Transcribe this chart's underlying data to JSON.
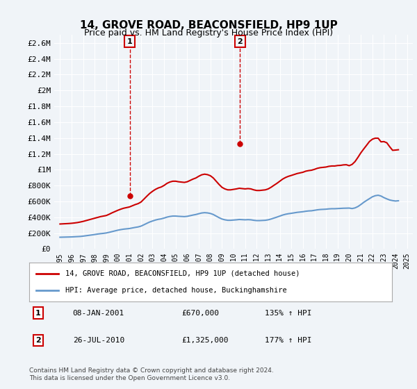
{
  "title": "14, GROVE ROAD, BEACONSFIELD, HP9 1UP",
  "subtitle": "Price paid vs. HM Land Registry's House Price Index (HPI)",
  "hpi_line_color": "#6699cc",
  "price_line_color": "#cc0000",
  "background_color": "#f0f4f8",
  "plot_bg_color": "#f0f4f8",
  "grid_color": "#ffffff",
  "ylim": [
    0,
    2700000
  ],
  "yticks": [
    0,
    200000,
    400000,
    600000,
    800000,
    1000000,
    1200000,
    1400000,
    1600000,
    1800000,
    2000000,
    2200000,
    2400000,
    2600000
  ],
  "ytick_labels": [
    "£0",
    "£200K",
    "£400K",
    "£600K",
    "£800K",
    "£1M",
    "£1.2M",
    "£1.4M",
    "£1.6M",
    "£1.8M",
    "£2M",
    "£2.2M",
    "£2.4M",
    "£2.6M"
  ],
  "xlabel": "",
  "legend_label_red": "14, GROVE ROAD, BEACONSFIELD, HP9 1UP (detached house)",
  "legend_label_blue": "HPI: Average price, detached house, Buckinghamshire",
  "sale1_label": "1",
  "sale1_date": "08-JAN-2001",
  "sale1_price": "£670,000",
  "sale1_hpi": "135% ↑ HPI",
  "sale1_year": 2001.03,
  "sale1_value": 670000,
  "sale2_label": "2",
  "sale2_date": "26-JUL-2010",
  "sale2_price": "£1,325,000",
  "sale2_hpi": "177% ↑ HPI",
  "sale2_year": 2010.56,
  "sale2_value": 1325000,
  "footnote": "Contains HM Land Registry data © Crown copyright and database right 2024.\nThis data is licensed under the Open Government Licence v3.0.",
  "hpi_data": {
    "years": [
      1995.0,
      1995.25,
      1995.5,
      1995.75,
      1996.0,
      1996.25,
      1996.5,
      1996.75,
      1997.0,
      1997.25,
      1997.5,
      1997.75,
      1998.0,
      1998.25,
      1998.5,
      1998.75,
      1999.0,
      1999.25,
      1999.5,
      1999.75,
      2000.0,
      2000.25,
      2000.5,
      2000.75,
      2001.0,
      2001.25,
      2001.5,
      2001.75,
      2002.0,
      2002.25,
      2002.5,
      2002.75,
      2003.0,
      2003.25,
      2003.5,
      2003.75,
      2004.0,
      2004.25,
      2004.5,
      2004.75,
      2005.0,
      2005.25,
      2005.5,
      2005.75,
      2006.0,
      2006.25,
      2006.5,
      2006.75,
      2007.0,
      2007.25,
      2007.5,
      2007.75,
      2008.0,
      2008.25,
      2008.5,
      2008.75,
      2009.0,
      2009.25,
      2009.5,
      2009.75,
      2010.0,
      2010.25,
      2010.5,
      2010.75,
      2011.0,
      2011.25,
      2011.5,
      2011.75,
      2012.0,
      2012.25,
      2012.5,
      2012.75,
      2013.0,
      2013.25,
      2013.5,
      2013.75,
      2014.0,
      2014.25,
      2014.5,
      2014.75,
      2015.0,
      2015.25,
      2015.5,
      2015.75,
      2016.0,
      2016.25,
      2016.5,
      2016.75,
      2017.0,
      2017.25,
      2017.5,
      2017.75,
      2018.0,
      2018.25,
      2018.5,
      2018.75,
      2019.0,
      2019.25,
      2019.5,
      2019.75,
      2020.0,
      2020.25,
      2020.5,
      2020.75,
      2021.0,
      2021.25,
      2021.5,
      2021.75,
      2022.0,
      2022.25,
      2022.5,
      2022.75,
      2023.0,
      2023.25,
      2023.5,
      2023.75,
      2024.0,
      2024.25
    ],
    "values": [
      148000,
      149000,
      150000,
      151000,
      152000,
      154000,
      156000,
      158000,
      162000,
      167000,
      172000,
      177000,
      182000,
      188000,
      193000,
      197000,
      202000,
      210000,
      219000,
      228000,
      237000,
      244000,
      250000,
      254000,
      258000,
      265000,
      272000,
      278000,
      288000,
      305000,
      323000,
      340000,
      353000,
      365000,
      374000,
      380000,
      390000,
      402000,
      410000,
      415000,
      415000,
      412000,
      410000,
      408000,
      412000,
      420000,
      428000,
      435000,
      445000,
      454000,
      458000,
      455000,
      448000,
      435000,
      415000,
      395000,
      378000,
      368000,
      362000,
      362000,
      365000,
      368000,
      372000,
      370000,
      368000,
      370000,
      368000,
      362000,
      358000,
      358000,
      360000,
      362000,
      368000,
      378000,
      390000,
      402000,
      415000,
      428000,
      438000,
      445000,
      450000,
      456000,
      462000,
      466000,
      470000,
      476000,
      480000,
      482000,
      488000,
      494000,
      498000,
      500000,
      502000,
      506000,
      508000,
      508000,
      510000,
      512000,
      514000,
      515000,
      516000,
      510000,
      518000,
      535000,
      560000,
      588000,
      612000,
      635000,
      658000,
      672000,
      678000,
      668000,
      648000,
      632000,
      618000,
      610000,
      605000,
      608000
    ]
  },
  "price_data": {
    "years": [
      1995.0,
      1995.25,
      1995.5,
      1995.75,
      1996.0,
      1996.25,
      1996.5,
      1996.75,
      1997.0,
      1997.25,
      1997.5,
      1997.75,
      1998.0,
      1998.25,
      1998.5,
      1998.75,
      1999.0,
      1999.25,
      1999.5,
      1999.75,
      2000.0,
      2000.25,
      2000.5,
      2000.75,
      2001.0,
      2001.25,
      2001.5,
      2001.75,
      2002.0,
      2002.25,
      2002.5,
      2002.75,
      2003.0,
      2003.25,
      2003.5,
      2003.75,
      2004.0,
      2004.25,
      2004.5,
      2004.75,
      2005.0,
      2005.25,
      2005.5,
      2005.75,
      2006.0,
      2006.25,
      2006.5,
      2006.75,
      2007.0,
      2007.25,
      2007.5,
      2007.75,
      2008.0,
      2008.25,
      2008.5,
      2008.75,
      2009.0,
      2009.25,
      2009.5,
      2009.75,
      2010.0,
      2010.25,
      2010.5,
      2010.75,
      2011.0,
      2011.25,
      2011.5,
      2011.75,
      2012.0,
      2012.25,
      2012.5,
      2012.75,
      2013.0,
      2013.25,
      2013.5,
      2013.75,
      2014.0,
      2014.25,
      2014.5,
      2014.75,
      2015.0,
      2015.25,
      2015.5,
      2015.75,
      2016.0,
      2016.25,
      2016.5,
      2016.75,
      2017.0,
      2017.25,
      2017.5,
      2017.75,
      2018.0,
      2018.25,
      2018.5,
      2018.75,
      2019.0,
      2019.25,
      2019.5,
      2019.75,
      2020.0,
      2020.25,
      2020.5,
      2020.75,
      2021.0,
      2021.25,
      2021.5,
      2021.75,
      2022.0,
      2022.25,
      2022.5,
      2022.75,
      2023.0,
      2023.25,
      2023.5,
      2023.75,
      2024.0,
      2024.25
    ],
    "values": [
      315000,
      317000,
      319000,
      321000,
      324000,
      328000,
      333000,
      340000,
      348000,
      358000,
      368000,
      378000,
      388000,
      398000,
      408000,
      415000,
      422000,
      438000,
      456000,
      472000,
      488000,
      502000,
      514000,
      522000,
      530000,
      545000,
      560000,
      572000,
      592000,
      628000,
      665000,
      700000,
      728000,
      752000,
      770000,
      782000,
      802000,
      828000,
      845000,
      855000,
      855000,
      848000,
      844000,
      840000,
      848000,
      865000,
      882000,
      896000,
      918000,
      936000,
      944000,
      938000,
      924000,
      896000,
      855000,
      814000,
      778000,
      758000,
      746000,
      746000,
      752000,
      758000,
      766000,
      762000,
      758000,
      762000,
      758000,
      746000,
      738000,
      738000,
      742000,
      746000,
      758000,
      779000,
      804000,
      828000,
      855000,
      882000,
      902000,
      917000,
      928000,
      940000,
      952000,
      960000,
      968000,
      982000,
      989000,
      994000,
      1005000,
      1018000,
      1026000,
      1030000,
      1034000,
      1043000,
      1047000,
      1047000,
      1053000,
      1055000,
      1061000,
      1063000,
      1051000,
      1067000,
      1102000,
      1155000,
      1212000,
      1261000,
      1308000,
      1356000,
      1385000,
      1398000,
      1398000,
      1352000,
      1355000,
      1340000,
      1290000,
      1245000,
      1248000,
      1252000
    ]
  },
  "xtick_years": [
    "1995",
    "1996",
    "1997",
    "1998",
    "1999",
    "2000",
    "2001",
    "2002",
    "2003",
    "2004",
    "2005",
    "2006",
    "2007",
    "2008",
    "2009",
    "2010",
    "2011",
    "2012",
    "2013",
    "2014",
    "2015",
    "2016",
    "2017",
    "2018",
    "2019",
    "2020",
    "2021",
    "2022",
    "2023",
    "2024",
    "2025"
  ]
}
